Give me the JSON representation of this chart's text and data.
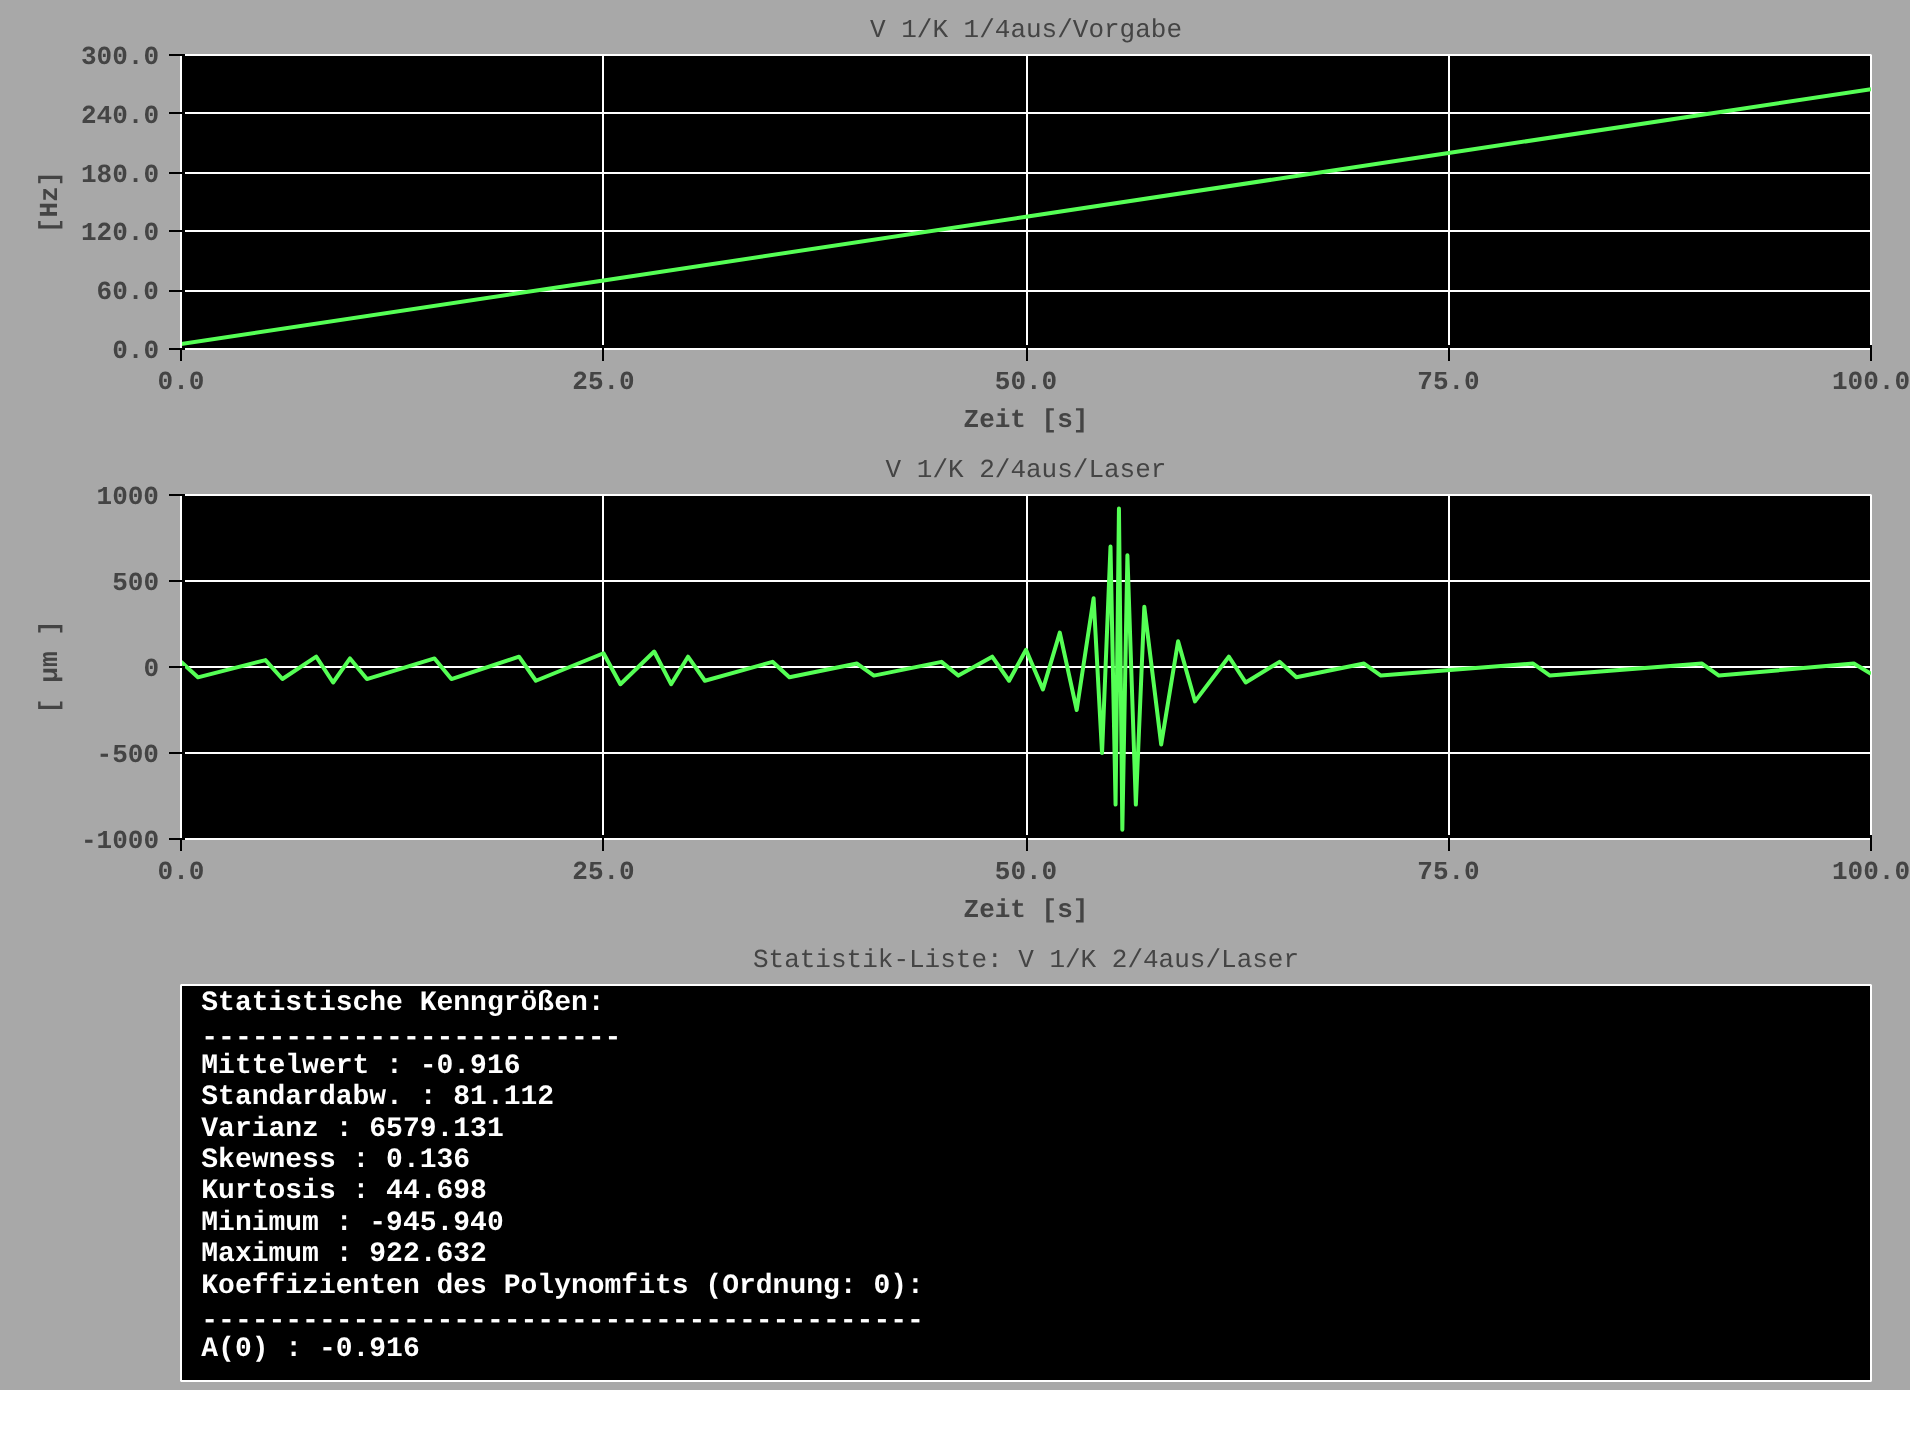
{
  "chart_data": [
    {
      "type": "line",
      "title": "V 1/K 1/4aus/Vorgabe",
      "xlabel": "Zeit [s]",
      "ylabel": "[Hz]",
      "grid": true,
      "xlim": [
        0,
        100
      ],
      "xticks": [
        {
          "value": 0,
          "label": "0.0"
        },
        {
          "value": 25,
          "label": "25.0"
        },
        {
          "value": 50,
          "label": "50.0"
        },
        {
          "value": 75,
          "label": "75.0"
        },
        {
          "value": 100,
          "label": "100.0"
        }
      ],
      "ylim": [
        0,
        300
      ],
      "yticks": [
        {
          "value": 0,
          "label": "0.0"
        },
        {
          "value": 60,
          "label": "60.0"
        },
        {
          "value": 120,
          "label": "120.0"
        },
        {
          "value": 180,
          "label": "180.0"
        },
        {
          "value": 240,
          "label": "240.0"
        },
        {
          "value": 300,
          "label": "300.0"
        }
      ],
      "series": [
        {
          "color": "#55ff55",
          "x": [
            0,
            25,
            50,
            75,
            100
          ],
          "values": [
            5,
            70,
            135,
            200,
            265
          ]
        }
      ]
    },
    {
      "type": "line",
      "title": "V 1/K 2/4aus/Laser",
      "xlabel": "Zeit [s]",
      "ylabel": "[ µm ]",
      "grid": true,
      "xlim": [
        0,
        100
      ],
      "xticks": [
        {
          "value": 0,
          "label": "0.0"
        },
        {
          "value": 25,
          "label": "25.0"
        },
        {
          "value": 50,
          "label": "50.0"
        },
        {
          "value": 75,
          "label": "75.0"
        },
        {
          "value": 100,
          "label": "100.0"
        }
      ],
      "ylim": [
        -1000,
        1000
      ],
      "yticks": [
        -1000,
        -500,
        0,
        500,
        1000
      ],
      "series": [
        {
          "color": "#55ff55",
          "x": [
            0,
            1,
            5,
            6,
            8,
            9,
            10,
            11,
            15,
            16,
            20,
            21,
            25,
            26,
            28,
            29,
            30,
            31,
            35,
            36,
            40,
            41,
            45,
            46,
            48,
            49,
            50,
            51,
            52,
            53,
            54,
            54.5,
            55,
            55.3,
            55.5,
            55.7,
            56,
            56.5,
            57,
            58,
            59,
            60,
            62,
            63,
            65,
            66,
            70,
            71,
            80,
            81,
            90,
            91,
            99,
            100
          ],
          "values": [
            30,
            -60,
            40,
            -70,
            60,
            -90,
            50,
            -70,
            50,
            -70,
            60,
            -80,
            80,
            -100,
            90,
            -100,
            60,
            -80,
            30,
            -60,
            20,
            -50,
            30,
            -50,
            60,
            -80,
            100,
            -130,
            200,
            -250,
            400,
            -500,
            700,
            -800,
            922,
            -946,
            650,
            -800,
            350,
            -450,
            150,
            -200,
            60,
            -90,
            30,
            -60,
            20,
            -50,
            20,
            -50,
            20,
            -50,
            20,
            -40
          ]
        }
      ]
    },
    {
      "type": "other",
      "title": "Statistik-Liste: V 1/K 2/4aus/Laser",
      "annotations": [
        "Statistische Kenngrößen:",
        "-------------------------",
        "Mittelwert : -0.916",
        "Standardabw. : 81.112",
        "Varianz : 6579.131",
        "Skewness : 0.136",
        "Kurtosis : 44.698",
        "Minimum : -945.940",
        "Maximum : 922.632",
        "Koeffizienten des Polynomfits (Ordnung: 0):",
        "-------------------------------------------",
        "A(0) : -0.916"
      ]
    }
  ]
}
